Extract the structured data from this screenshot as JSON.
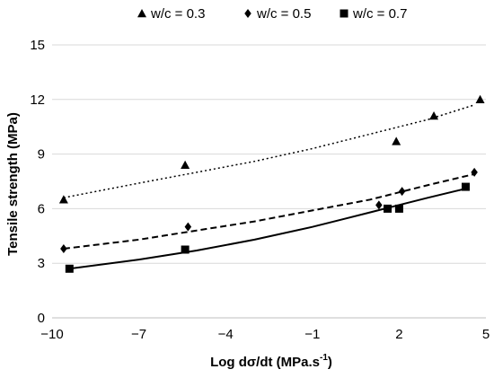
{
  "chart_data": {
    "type": "scatter",
    "xlabel_main": "Log dσ/dt (MPa.s",
    "xlabel_sup": "-1",
    "xlabel_close": ")",
    "ylabel": "Tensile strength (MPa)",
    "xlim": [
      -10,
      5
    ],
    "ylim": [
      0,
      15
    ],
    "x_ticks": [
      -10,
      -7,
      -4,
      -1,
      2,
      5
    ],
    "x_tick_labels": [
      "−10",
      "−7",
      "−4",
      "−1",
      "2",
      "5"
    ],
    "y_ticks": [
      0,
      3,
      6,
      9,
      12,
      15
    ],
    "y_tick_labels": [
      "0",
      "3",
      "6",
      "9",
      "12",
      "15"
    ],
    "grid": "horizontal",
    "legend_position": "top",
    "series": [
      {
        "name": "w/c = 0.3",
        "marker": "triangle",
        "points": [
          [
            -9.6,
            6.5
          ],
          [
            -5.4,
            8.4
          ],
          [
            1.9,
            9.7
          ],
          [
            3.2,
            11.1
          ],
          [
            4.8,
            12.0
          ]
        ],
        "trend": {
          "style": "dotted",
          "x": [
            -9.6,
            -7,
            -5,
            -3,
            -1,
            1,
            3,
            4.6
          ],
          "y": [
            6.6,
            7.4,
            8.0,
            8.6,
            9.3,
            10.1,
            10.9,
            11.7
          ]
        }
      },
      {
        "name": "w/c = 0.5",
        "marker": "diamond",
        "points": [
          [
            -9.6,
            3.8
          ],
          [
            -5.3,
            5.0
          ],
          [
            1.3,
            6.2
          ],
          [
            2.1,
            6.95
          ],
          [
            4.6,
            8.0
          ]
        ],
        "trend": {
          "style": "dashed",
          "x": [
            -9.6,
            -7,
            -5,
            -3,
            -1,
            1,
            3,
            4.6
          ],
          "y": [
            3.8,
            4.3,
            4.8,
            5.3,
            5.9,
            6.5,
            7.3,
            7.9
          ]
        }
      },
      {
        "name": "w/c = 0.7",
        "marker": "square",
        "points": [
          [
            -9.4,
            2.7
          ],
          [
            -5.4,
            3.75
          ],
          [
            1.6,
            6.0
          ],
          [
            2.0,
            6.0
          ],
          [
            4.3,
            7.2
          ]
        ],
        "trend": {
          "style": "solid",
          "x": [
            -9.4,
            -7,
            -5,
            -3,
            -1,
            1,
            2,
            3,
            4.3
          ],
          "y": [
            2.7,
            3.2,
            3.7,
            4.3,
            5.0,
            5.8,
            6.2,
            6.6,
            7.1
          ]
        }
      }
    ]
  }
}
